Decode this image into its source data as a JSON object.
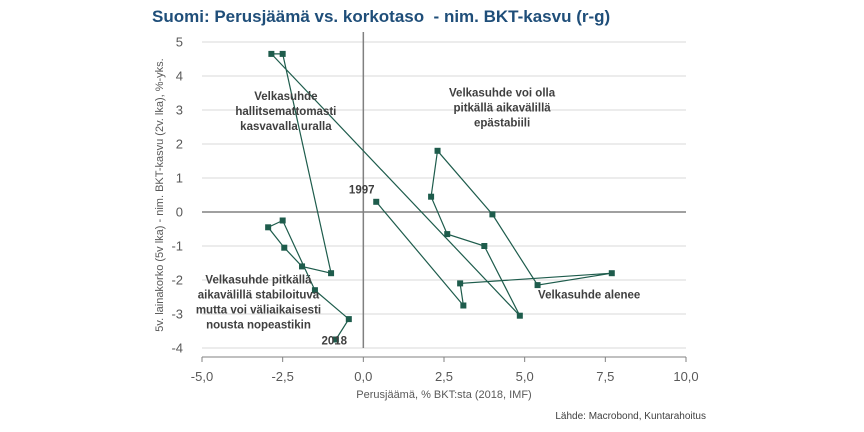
{
  "chart_data": {
    "type": "scatter",
    "title": "Suomi: Perusjäämä vs. korkotaso  - nim. BKT-kasvu (r-g)",
    "xlabel": "Perusjäämä, % BKT:sta (2018, IMF)",
    "ylabel": "5v. lainakorko (5v lka) - nim. BKT-kasvu (2v. lka), %-yks.",
    "xlim": [
      -5,
      10
    ],
    "ylim": [
      -4,
      5
    ],
    "x_ticks": [
      "-5,0",
      "-2,5",
      "0,0",
      "2,5",
      "5,0",
      "7,5",
      "10,0"
    ],
    "x_tick_values": [
      -5,
      -2.5,
      0,
      2.5,
      5,
      7.5,
      10
    ],
    "y_ticks": [
      "-4",
      "-3",
      "-2",
      "-1",
      "0",
      "1",
      "2",
      "3",
      "4",
      "5"
    ],
    "y_tick_values": [
      -4,
      -3,
      -2,
      -1,
      0,
      1,
      2,
      3,
      4,
      5
    ],
    "grid": "horizontal",
    "series": [
      {
        "color": "#1e5c4c",
        "points": [
          {
            "x": 0.4,
            "y": 0.3
          },
          {
            "x": 3.1,
            "y": -2.75
          },
          {
            "x": 3.0,
            "y": -2.1
          },
          {
            "x": 7.7,
            "y": -1.8
          },
          {
            "x": 5.4,
            "y": -2.15
          },
          {
            "x": 4.0,
            "y": -0.07
          },
          {
            "x": 2.3,
            "y": 1.8
          },
          {
            "x": 2.1,
            "y": 0.45
          },
          {
            "x": 2.6,
            "y": -0.65
          },
          {
            "x": 3.75,
            "y": -1.0
          },
          {
            "x": 4.85,
            "y": -3.05
          },
          {
            "x": -2.85,
            "y": 4.65
          },
          {
            "x": -2.5,
            "y": 4.65
          },
          {
            "x": -1.0,
            "y": -1.8
          },
          {
            "x": -1.9,
            "y": -1.6
          },
          {
            "x": -2.45,
            "y": -1.05
          },
          {
            "x": -2.95,
            "y": -0.45
          },
          {
            "x": -2.5,
            "y": -0.25
          },
          {
            "x": -1.5,
            "y": -2.3
          },
          {
            "x": -0.45,
            "y": -3.15
          },
          {
            "x": -0.85,
            "y": -3.75
          }
        ]
      }
    ],
    "annotations": [
      {
        "lines": [
          "Velkasuhde",
          "hallitsemattomasti",
          "kasvavalla uralla"
        ],
        "x": -2.4,
        "y": 3.3
      },
      {
        "lines": [
          "Velkasuhde voi olla",
          "pitkällä aikavälillä",
          "epästabiili"
        ],
        "x": 4.3,
        "y": 3.4
      },
      {
        "lines": [
          "1997"
        ],
        "x": -0.05,
        "y": 0.55
      },
      {
        "lines": [
          "Velkasuhde alenee"
        ],
        "x": 7.0,
        "y": -2.55
      },
      {
        "lines": [
          "Velkasuhde pitkällä",
          "aikavälillä stabiloituva",
          "mutta voi väliaikaisesti",
          "nousta nopeastikin"
        ],
        "x": -3.25,
        "y": -2.1
      },
      {
        "lines": [
          "2018"
        ],
        "x": -0.9,
        "y": -3.9
      }
    ],
    "source": "Lähde: Macrobond, Kuntarahoitus"
  }
}
